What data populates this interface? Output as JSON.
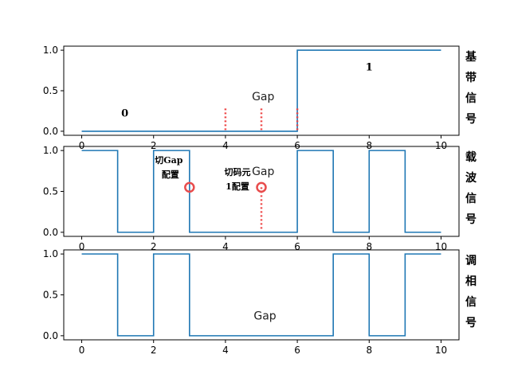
{
  "chart_data": [
    {
      "type": "line",
      "step": "post",
      "side_label": [
        "基",
        "带",
        "信",
        "号"
      ],
      "xlim": [
        0,
        10
      ],
      "ylim": [
        0,
        1
      ],
      "xticks": [
        "0",
        "2",
        "4",
        "6",
        "8",
        "10"
      ],
      "yticks": [
        "0.0",
        "0.5",
        "1.0"
      ],
      "series": [
        {
          "x": [
            0,
            6,
            10
          ],
          "y": [
            0,
            1,
            1
          ]
        }
      ],
      "color": "#1f77b4",
      "annotations": [
        {
          "text": "0",
          "x": 1.2,
          "y": 0.18
        },
        {
          "text": "1",
          "x": 8.0,
          "y": 0.75
        },
        {
          "text": "Gap",
          "x": 5.05,
          "y": 0.38
        }
      ],
      "dotted_markers": [
        4,
        5,
        6
      ]
    },
    {
      "type": "line",
      "step": "post",
      "side_label": [
        "载",
        "波",
        "信",
        "号"
      ],
      "xlim": [
        0,
        10
      ],
      "ylim": [
        0,
        1
      ],
      "xticks": [
        "0",
        "2",
        "4",
        "6",
        "8",
        "10"
      ],
      "yticks": [
        "0.0",
        "0.5",
        "1.0"
      ],
      "series": [
        {
          "x": [
            0,
            1,
            2,
            3,
            4,
            5,
            6,
            7,
            8,
            9,
            10
          ],
          "y": [
            1,
            0,
            1,
            0,
            0,
            0,
            1,
            0,
            1,
            0,
            0
          ]
        }
      ],
      "color": "#1f77b4",
      "annotations": [
        {
          "text": "Gap",
          "x": 5.05,
          "y": 0.7
        }
      ],
      "callouts": [
        {
          "lines": [
            "切Gap",
            "配置"
          ],
          "circle_x": 3.0,
          "circle_y": 0.55
        },
        {
          "lines": [
            "切码元",
            "1配置"
          ],
          "circle_x": 5.0,
          "circle_y": 0.55
        }
      ],
      "dotted_markers": [
        5
      ]
    },
    {
      "type": "line",
      "step": "post",
      "side_label": [
        "调",
        "相",
        "信",
        "号"
      ],
      "xlim": [
        0,
        10
      ],
      "ylim": [
        0,
        1
      ],
      "xticks": [
        "0",
        "2",
        "4",
        "6",
        "8",
        "10"
      ],
      "yticks": [
        "0.0",
        "0.5",
        "1.0"
      ],
      "series": [
        {
          "x": [
            0,
            1,
            2,
            3,
            4,
            5,
            6,
            7,
            8,
            9,
            10
          ],
          "y": [
            1,
            0,
            1,
            0,
            0,
            0,
            0,
            1,
            0,
            1,
            1
          ]
        }
      ],
      "color": "#1f77b4",
      "annotations": [
        {
          "text": "Gap",
          "x": 5.1,
          "y": 0.2
        }
      ]
    }
  ]
}
